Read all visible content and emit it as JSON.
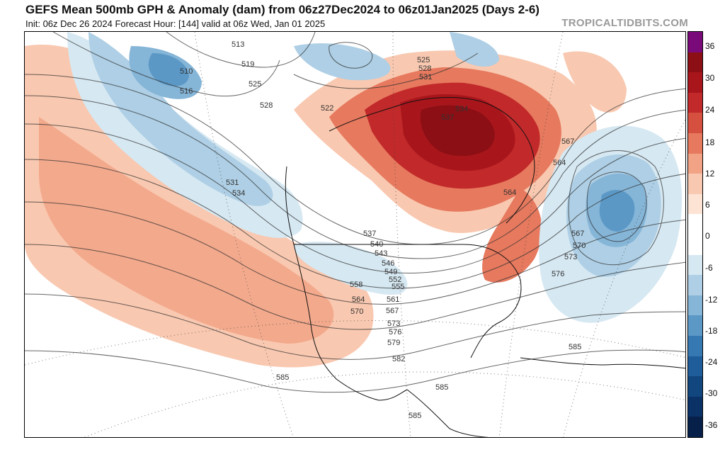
{
  "header": {
    "title": "GEFS Mean 500mb GPH & Anomaly (dam) from 06z27Dec2024 to 06z01Jan2025 (Days 2-6)",
    "subtitle": "Init: 06z Dec 26 2024   Forecast Hour: [144]   valid at 06z Wed, Jan 01 2025",
    "brand": "TROPICALTIDBITS.COM"
  },
  "colorbar": {
    "labels": [
      "36",
      "30",
      "24",
      "18",
      "12",
      "6",
      "0",
      "-6",
      "-12",
      "-18",
      "-24",
      "-30",
      "-36"
    ],
    "colors": [
      "#7a0a7a",
      "#8b0f14",
      "#a8161c",
      "#c2292a",
      "#d65040",
      "#e6795e",
      "#f2a386",
      "#f9c8b0",
      "#fde3d4",
      "#ffffff",
      "#ffffff",
      "#d6e8f2",
      "#aecfe5",
      "#85b5d7",
      "#5b98c6",
      "#3578b2",
      "#1e5c9a",
      "#12467f",
      "#0b3266",
      "#06204a"
    ],
    "accent_warm": "#c2292a",
    "accent_cold": "#3578b2"
  },
  "map": {
    "contour_labels": [
      "513",
      "510",
      "516",
      "519",
      "525",
      "528",
      "531",
      "534",
      "537",
      "540",
      "543",
      "546",
      "549",
      "552",
      "555",
      "558",
      "561",
      "564",
      "567",
      "570",
      "573",
      "576",
      "579",
      "582",
      "585",
      "522",
      "525",
      "528",
      "531",
      "534",
      "537",
      "567",
      "564",
      "564",
      "567",
      "570",
      "573",
      "576",
      "585",
      "585",
      "585"
    ]
  }
}
